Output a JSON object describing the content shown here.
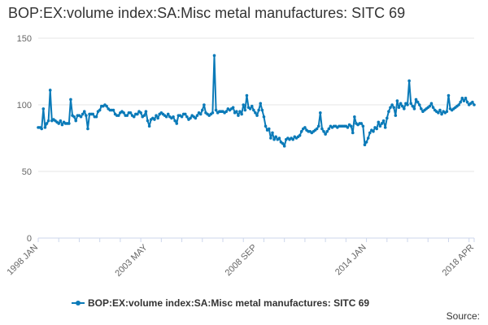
{
  "chart_data": {
    "type": "line",
    "title": "BOP:EX:volume index:SA:Misc metal manufactures: SITC 69",
    "xlabel": "",
    "ylabel": "",
    "ylim": [
      0,
      150
    ],
    "yticks": [
      0,
      50,
      100,
      150
    ],
    "xticks": [
      "1998 JAN",
      "2003 MAY",
      "2008 SEP",
      "2014 JAN",
      "2018 APR"
    ],
    "legend": "bottom",
    "source_label": "Source:",
    "colors": {
      "series": "#0a7ab8",
      "grid": "#e6e6e6",
      "axis": "#ccd6eb"
    },
    "series": [
      {
        "name": "BOP:EX:volume index:SA:Misc metal manufactures: SITC 69",
        "period": "1998 JAN to 2018 APR (monthly)",
        "values": [
          83,
          83,
          82,
          97,
          83,
          86,
          88,
          111,
          88,
          89,
          88,
          87,
          86,
          88,
          85,
          87,
          86,
          86,
          86,
          104,
          92,
          91,
          88,
          92,
          92,
          91,
          93,
          95,
          92,
          82,
          93,
          93,
          93,
          91,
          91,
          95,
          96,
          99,
          99,
          100,
          99,
          97,
          96,
          96,
          96,
          93,
          92,
          92,
          94,
          95,
          94,
          92,
          92,
          94,
          94,
          92,
          91,
          93,
          93,
          95,
          94,
          91,
          92,
          95,
          88,
          84,
          89,
          90,
          89,
          92,
          90,
          93,
          94,
          93,
          92,
          91,
          93,
          91,
          90,
          91,
          88,
          86,
          92,
          92,
          91,
          93,
          93,
          91,
          89,
          90,
          92,
          91,
          90,
          92,
          94,
          93,
          96,
          100,
          94,
          93,
          92,
          93,
          94,
          137,
          96,
          94,
          95,
          95,
          95,
          94,
          95,
          97,
          96,
          97,
          98,
          94,
          95,
          92,
          95,
          93,
          100,
          96,
          107,
          98,
          97,
          99,
          96,
          94,
          92,
          96,
          101,
          96,
          91,
          84,
          81,
          82,
          75,
          79,
          74,
          76,
          74,
          75,
          72,
          71,
          69,
          74,
          75,
          74,
          75,
          74,
          76,
          75,
          76,
          77,
          80,
          82,
          83,
          81,
          80,
          80,
          79,
          80,
          81,
          82,
          84,
          94,
          82,
          80,
          78,
          80,
          82,
          84,
          83,
          84,
          84,
          83,
          84,
          84,
          84,
          84,
          84,
          83,
          85,
          84,
          79,
          91,
          86,
          85,
          86,
          86,
          84,
          70,
          72,
          75,
          79,
          81,
          80,
          83,
          82,
          87,
          84,
          86,
          88,
          83,
          90,
          95,
          98,
          100,
          98,
          92,
          103,
          98,
          101,
          99,
          97,
          101,
          100,
          118,
          101,
          99,
          97,
          104,
          102,
          100,
          97,
          95,
          96,
          97,
          98,
          99,
          101,
          98,
          96,
          95,
          94,
          96,
          93,
          95,
          94,
          95,
          107,
          97,
          96,
          97,
          98,
          99,
          100,
          102,
          105,
          103,
          105,
          102,
          100,
          101,
          102,
          100
        ]
      }
    ]
  }
}
